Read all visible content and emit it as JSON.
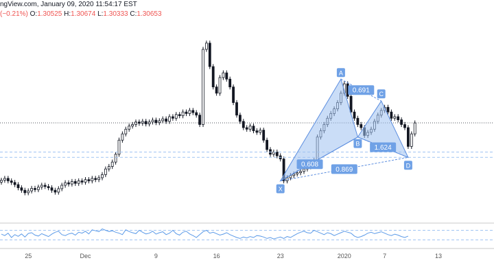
{
  "header": {
    "source_text": "ngView.com, January 09, 2020 11:54:17 EST",
    "change_text": "(−0.21%)",
    "ohlc": [
      {
        "label": "O:",
        "value": "1.30525"
      },
      {
        "label": "H:",
        "value": "1.30674"
      },
      {
        "label": "L:",
        "value": "1.30333"
      },
      {
        "label": "C:",
        "value": "1.30653"
      }
    ]
  },
  "colors": {
    "candle": "#131722",
    "pattern_fill": "#9ec1f0",
    "pattern_stroke": "#5b8ddf",
    "label_bg": "#6fa1e6",
    "osc_line": "#5b9ae8",
    "dash_line": "#9fc3f2",
    "price_line": "#131722",
    "axis_text": "#555555"
  },
  "chart_data": [
    {
      "type": "candlestick",
      "title": "",
      "x_tick_labels": [
        {
          "label": "25",
          "index": 8
        },
        {
          "label": "Dec",
          "index": 25
        },
        {
          "label": "9",
          "index": 46
        },
        {
          "label": "16",
          "index": 64
        },
        {
          "label": "23",
          "index": 83
        },
        {
          "label": "2020",
          "index": 102
        },
        {
          "label": "7",
          "index": 114
        },
        {
          "label": "13",
          "index": 130
        }
      ],
      "close": [
        1.2882,
        1.2888,
        1.288,
        1.2875,
        1.2868,
        1.2858,
        1.285,
        1.2842,
        1.2848,
        1.2856,
        1.2852,
        1.286,
        1.2866,
        1.2862,
        1.2858,
        1.285,
        1.2844,
        1.2855,
        1.2866,
        1.2874,
        1.287,
        1.2878,
        1.2872,
        1.288,
        1.2876,
        1.2884,
        1.288,
        1.2888,
        1.2884,
        1.289,
        1.29,
        1.2918,
        1.2926,
        1.294,
        1.2965,
        1.301,
        1.303,
        1.3045,
        1.3055,
        1.306,
        1.3068,
        1.3064,
        1.307,
        1.3062,
        1.3068,
        1.3074,
        1.3066,
        1.3072,
        1.3078,
        1.307,
        1.3085,
        1.308,
        1.3092,
        1.3088,
        1.31,
        1.3095,
        1.3105,
        1.3098,
        1.309,
        1.306,
        1.33,
        1.332,
        1.3245,
        1.318,
        1.316,
        1.321,
        1.3225,
        1.3205,
        1.318,
        1.313,
        1.309,
        1.307,
        1.305,
        1.3045,
        1.3055,
        1.304,
        1.3035,
        1.3042,
        1.301,
        1.298,
        1.2965,
        1.2972,
        1.296,
        1.295,
        1.288,
        1.289,
        1.2897,
        1.2902,
        1.2906,
        1.291,
        1.2918,
        1.2925,
        1.2935,
        1.2945,
        1.302,
        1.304,
        1.306,
        1.308,
        1.3095,
        1.311,
        1.313,
        1.316,
        1.319,
        1.315,
        1.31,
        1.308,
        1.306,
        1.305,
        1.3025,
        1.3035,
        1.3045,
        1.307,
        1.309,
        1.3105,
        1.3115,
        1.31,
        1.308,
        1.3085,
        1.3075,
        1.306,
        1.305,
        1.299,
        1.303,
        1.3065
      ],
      "last_price": 1.30653,
      "ylim": [
        1.28,
        1.337
      ],
      "pattern_points": {
        "X": {
          "index": 83,
          "price": 1.288
        },
        "A": {
          "index": 101,
          "price": 1.3205
        },
        "B": {
          "index": 106,
          "price": 1.302
        },
        "C": {
          "index": 113,
          "price": 1.3135
        },
        "D": {
          "index": 121,
          "price": 1.2955
        }
      },
      "ratios": [
        "0.691",
        "0.608",
        "1.624",
        "0.869"
      ],
      "horizontal_levels": [
        1.2955,
        1.2972
      ]
    },
    {
      "type": "line",
      "title": "",
      "series_values": [
        54,
        48,
        58,
        40,
        52,
        45,
        55,
        42,
        57,
        60,
        50,
        46,
        56,
        50,
        44,
        54,
        62,
        66,
        52,
        48,
        55,
        58,
        50,
        62,
        58,
        66,
        55,
        72,
        68,
        64,
        76,
        70,
        65,
        68,
        62,
        58,
        52,
        72,
        65,
        60,
        56,
        70,
        62,
        55,
        58,
        66,
        54,
        60,
        64,
        52,
        58,
        70,
        56,
        50,
        62,
        66,
        55,
        48,
        40,
        52,
        64,
        70,
        58,
        62,
        56,
        50,
        54,
        60,
        52,
        46,
        40,
        36,
        42,
        38,
        44,
        40,
        48,
        46,
        42,
        36,
        40,
        34,
        38,
        42,
        36,
        44,
        40,
        48,
        56,
        62,
        66,
        60,
        58,
        70,
        64,
        58,
        52,
        60,
        56,
        48,
        54,
        60,
        66,
        62,
        58,
        46,
        40,
        44,
        50,
        58,
        62,
        56,
        60,
        64,
        58,
        52,
        48,
        54,
        50,
        44,
        40,
        46
      ],
      "ylim": [
        0,
        100
      ],
      "levels": [
        30,
        70
      ]
    }
  ]
}
